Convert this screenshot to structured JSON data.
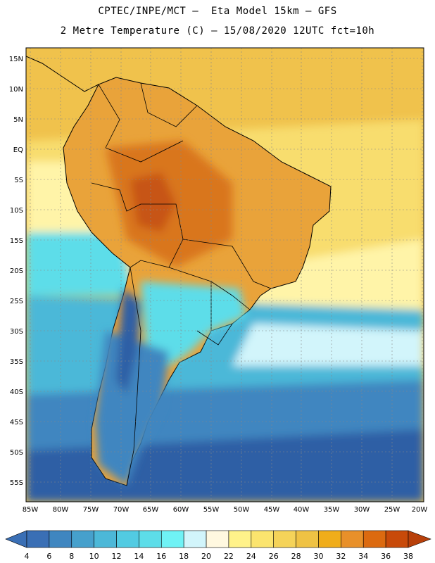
{
  "header": {
    "line1": "CPTEC/INPE/MCT –  Eta Model 15km – GFS",
    "line2": "2 Metre Temperature (C) – 15/08/2020 12UTC fct=10h"
  },
  "axes": {
    "lat_labels": [
      "15N",
      "10N",
      "5N",
      "EQ",
      "5S",
      "10S",
      "15S",
      "20S",
      "25S",
      "30S",
      "35S",
      "40S",
      "45S",
      "50S",
      "55S"
    ],
    "lon_labels": [
      "85W",
      "80W",
      "75W",
      "70W",
      "65W",
      "60W",
      "55W",
      "50W",
      "45W",
      "40W",
      "35W",
      "30W",
      "25W",
      "20W"
    ]
  },
  "colorbar": {
    "labels": [
      "4",
      "6",
      "8",
      "10",
      "12",
      "14",
      "16",
      "18",
      "20",
      "22",
      "24",
      "26",
      "28",
      "30",
      "32",
      "34",
      "36",
      "38"
    ],
    "colors": [
      "#3a6fb5",
      "#3f86c0",
      "#46a0cc",
      "#4cb8d8",
      "#52cbe2",
      "#5ddde9",
      "#6ff2f5",
      "#d2f5fb",
      "#fff8e0",
      "#fff28a",
      "#fbe46e",
      "#f5d359",
      "#efc244",
      "#f0ad1a",
      "#e8902a",
      "#dc6a10",
      "#c84a0a"
    ],
    "low_color": "#3a6fb5",
    "high_color": "#b8400a"
  },
  "map_colors": {
    "ocean_warm": "#f0c24c",
    "ocean_mild": "#f8dd6e",
    "ocean_cool": "#fff4a8",
    "land_hot": "#e9a33a",
    "land_very_hot": "#d9761e",
    "land_peak": "#c75412",
    "southern_cool": "#4cb8d8",
    "southern_cold": "#3f86c0",
    "southern_coldest": "#2f5fa5",
    "border": "#000000"
  }
}
